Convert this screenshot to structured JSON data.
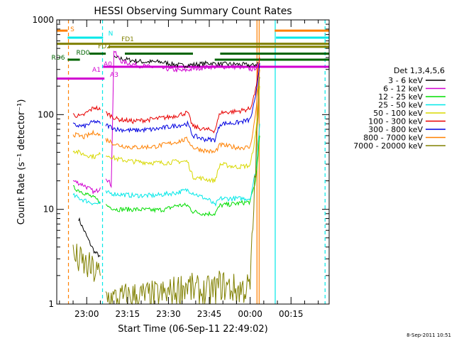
{
  "chart_data": {
    "type": "line",
    "title": "HESSI Observing Summary Count Rates",
    "xlabel": "Start Time (06-Sep-11 22:49:02)",
    "ylabel": "Count Rate (s⁻¹ detector⁻¹)",
    "yscale": "log",
    "ylim": [
      1,
      1000
    ],
    "xlim_minutes": [
      0,
      100
    ],
    "x_ticks": [
      {
        "minute": 11,
        "label": "23:00"
      },
      {
        "minute": 26,
        "label": "23:15"
      },
      {
        "minute": 41,
        "label": "23:30"
      },
      {
        "minute": 56,
        "label": "23:45"
      },
      {
        "minute": 71,
        "label": "00:00"
      },
      {
        "minute": 86,
        "label": "00:15"
      }
    ],
    "y_ticks": [
      {
        "value": 1,
        "label": "1"
      },
      {
        "value": 10,
        "label": "10"
      },
      {
        "value": 100,
        "label": "100"
      },
      {
        "value": 1000,
        "label": "1000"
      }
    ],
    "legend": {
      "placement": "right",
      "header": "Det 1,3,4,5,6",
      "entries": [
        {
          "label": "3 - 6 keV",
          "color": "#000000"
        },
        {
          "label": "6 - 12 keV",
          "color": "#d000d0"
        },
        {
          "label": "12 - 25 keV",
          "color": "#00dd00"
        },
        {
          "label": "25 - 50 keV",
          "color": "#00e8e8"
        },
        {
          "label": "50 - 100 keV",
          "color": "#d8d800"
        },
        {
          "label": "100 - 300 keV",
          "color": "#e80000"
        },
        {
          "label": "300 - 800 keV",
          "color": "#0000e0"
        },
        {
          "label": "800 - 7000 keV",
          "color": "#ff8000"
        },
        {
          "label": "7000 - 20000 keV",
          "color": "#808000"
        }
      ]
    },
    "series": [
      {
        "name": "3 - 6 keV",
        "color": "#000000",
        "segments": [
          [
            [
              8,
              8
            ],
            [
              10,
              6
            ],
            [
              12,
              4.5
            ],
            [
              14,
              3.5
            ],
            [
              16,
              3.2
            ]
          ],
          [
            [
              21,
              400
            ],
            [
              26,
              380
            ],
            [
              32,
              360
            ],
            [
              38,
              360
            ],
            [
              43,
              340
            ],
            [
              46,
              330
            ],
            [
              52,
              340
            ],
            [
              56,
              350
            ],
            [
              60,
              340
            ],
            [
              66,
              340
            ],
            [
              72,
              330
            ],
            [
              74,
              350
            ]
          ]
        ]
      },
      {
        "name": "6 - 12 keV",
        "color": "#d000d0",
        "segments": [
          [
            [
              6,
              20
            ],
            [
              10,
              18
            ],
            [
              14,
              15
            ],
            [
              16,
              17
            ]
          ],
          [
            [
              18,
              22
            ],
            [
              20,
              18
            ],
            [
              21,
              480
            ],
            [
              22,
              420
            ],
            [
              24,
              360
            ],
            [
              30,
              330
            ],
            [
              38,
              310
            ],
            [
              46,
              290
            ],
            [
              52,
              310
            ],
            [
              56,
              320
            ],
            [
              66,
              320
            ],
            [
              72,
              300
            ],
            [
              74,
              330
            ]
          ]
        ]
      },
      {
        "name": "12 - 25 keV",
        "color": "#00dd00",
        "segments": [
          [
            [
              6,
              17
            ],
            [
              10,
              15
            ],
            [
              14,
              13
            ],
            [
              16,
              12
            ]
          ],
          [
            [
              18,
              11
            ],
            [
              22,
              10
            ],
            [
              28,
              10
            ],
            [
              36,
              9.8
            ],
            [
              40,
              10
            ],
            [
              44,
              11
            ],
            [
              48,
              11
            ],
            [
              50,
              9.5
            ],
            [
              54,
              9
            ],
            [
              58,
              9
            ],
            [
              60,
              11
            ],
            [
              66,
              11.5
            ],
            [
              71,
              12
            ],
            [
              73,
              20
            ],
            [
              74.5,
              60
            ]
          ]
        ]
      },
      {
        "name": "25 - 50 keV",
        "color": "#00e8e8",
        "segments": [
          [
            [
              6,
              14
            ],
            [
              10,
              12.5
            ],
            [
              14,
              11.5
            ],
            [
              16,
              11.5
            ]
          ],
          [
            [
              18,
              15
            ],
            [
              22,
              14.5
            ],
            [
              28,
              14
            ],
            [
              36,
              14
            ],
            [
              40,
              14.5
            ],
            [
              44,
              15
            ],
            [
              48,
              16
            ],
            [
              52,
              14
            ],
            [
              56,
              12.5
            ],
            [
              58,
              11
            ],
            [
              60,
              13
            ],
            [
              66,
              13
            ],
            [
              71,
              13
            ],
            [
              73,
              25
            ],
            [
              74.5,
              80
            ]
          ]
        ]
      },
      {
        "name": "50 - 100 keV",
        "color": "#d8d800",
        "segments": [
          [
            [
              6,
              42
            ],
            [
              10,
              38
            ],
            [
              14,
              36
            ],
            [
              16,
              38
            ]
          ],
          [
            [
              18,
              38
            ],
            [
              22,
              34
            ],
            [
              28,
              32
            ],
            [
              36,
              31
            ],
            [
              40,
              31
            ],
            [
              44,
              32
            ],
            [
              48,
              32
            ],
            [
              50,
              22
            ],
            [
              54,
              21
            ],
            [
              58,
              20
            ],
            [
              60,
              30
            ],
            [
              66,
              28
            ],
            [
              71,
              29
            ],
            [
              73,
              60
            ],
            [
              74.5,
              200
            ]
          ]
        ]
      },
      {
        "name": "100 - 300 keV",
        "color": "#e80000",
        "segments": [
          [
            [
              6,
              100
            ],
            [
              9,
              95
            ],
            [
              12,
              110
            ],
            [
              14,
              120
            ],
            [
              16,
              112
            ]
          ],
          [
            [
              18,
              105
            ],
            [
              22,
              90
            ],
            [
              28,
              85
            ],
            [
              36,
              90
            ],
            [
              42,
              95
            ],
            [
              48,
              105
            ],
            [
              50,
              75
            ],
            [
              54,
              70
            ],
            [
              58,
              68
            ],
            [
              60,
              105
            ],
            [
              66,
              108
            ],
            [
              71,
              115
            ],
            [
              73,
              180
            ],
            [
              74.5,
              400
            ]
          ]
        ]
      },
      {
        "name": "300 - 800 keV",
        "color": "#0000e0",
        "segments": [
          [
            [
              6,
              78
            ],
            [
              10,
              75
            ],
            [
              14,
              85
            ],
            [
              16,
              80
            ]
          ],
          [
            [
              18,
              78
            ],
            [
              22,
              70
            ],
            [
              28,
              68
            ],
            [
              36,
              70
            ],
            [
              42,
              75
            ],
            [
              48,
              80
            ],
            [
              50,
              60
            ],
            [
              54,
              55
            ],
            [
              58,
              54
            ],
            [
              60,
              80
            ],
            [
              66,
              82
            ],
            [
              71,
              88
            ],
            [
              73,
              150
            ],
            [
              74.5,
              350
            ]
          ]
        ]
      },
      {
        "name": "800 - 7000 keV",
        "color": "#ff8000",
        "segments": [
          [
            [
              6,
              62
            ],
            [
              10,
              58
            ],
            [
              14,
              65
            ],
            [
              16,
              60
            ]
          ],
          [
            [
              18,
              55
            ],
            [
              22,
              48
            ],
            [
              28,
              45
            ],
            [
              36,
              46
            ],
            [
              42,
              50
            ],
            [
              48,
              55
            ],
            [
              50,
              45
            ],
            [
              54,
              42
            ],
            [
              58,
              40
            ],
            [
              60,
              48
            ],
            [
              66,
              45
            ],
            [
              71,
              45
            ],
            [
              73,
              100
            ],
            [
              74.5,
              300
            ]
          ]
        ]
      },
      {
        "name": "7000 - 20000 keV",
        "color": "#808000",
        "segments": [
          [
            [
              6,
              3.2
            ],
            [
              10,
              2.6
            ],
            [
              14,
              2.2
            ],
            [
              16,
              2.0
            ]
          ],
          [
            [
              18,
              1.2
            ],
            [
              22,
              1.1
            ],
            [
              28,
              1.2
            ],
            [
              36,
              1.2
            ],
            [
              42,
              1.3
            ],
            [
              48,
              1.6
            ],
            [
              50,
              1.4
            ],
            [
              54,
              1.3
            ],
            [
              58,
              1.4
            ],
            [
              60,
              1.6
            ],
            [
              66,
              1.4
            ],
            [
              71,
              1.5
            ],
            [
              73,
              30
            ],
            [
              74.5,
              250
            ]
          ]
        ]
      }
    ],
    "flag_lines": [
      {
        "label": "S",
        "color": "#ff8000",
        "y": 770,
        "segments": [
          [
            0,
            4
          ],
          [
            80,
            100
          ]
        ]
      },
      {
        "label": "N",
        "color": "#00e8e8",
        "y": 650,
        "segments": [
          [
            4,
            17
          ],
          [
            80.5,
            100
          ]
        ]
      },
      {
        "label": "FD1",
        "color": "#808000",
        "y": 520,
        "segments": [
          [
            19,
            100
          ]
        ]
      },
      {
        "label": "FD2",
        "color": "#808000",
        "y": 560,
        "segments": [
          [
            0,
            100
          ]
        ]
      },
      {
        "label": "RD6",
        "color": "#006400",
        "y": 380,
        "segments": [
          [
            4,
            8.5
          ],
          [
            58,
            100
          ]
        ]
      },
      {
        "label": "RD0",
        "color": "#006400",
        "y": 440,
        "segments": [
          [
            12,
            18
          ],
          [
            25,
            50
          ],
          [
            60,
            100
          ]
        ]
      },
      {
        "label": "A0",
        "color": "#d000d0",
        "y": 320,
        "segments": [
          [
            17,
            100
          ]
        ]
      },
      {
        "label": "A1",
        "color": "#d000d0",
        "y": 240,
        "segments": [
          [
            0,
            17.5
          ]
        ]
      },
      {
        "label": "A3",
        "color": "#d000d0",
        "y": 0,
        "segments": []
      }
    ],
    "vertical_markers": [
      {
        "minute": 4.3,
        "color": "#ff8000",
        "dashed": true
      },
      {
        "minute": 16.8,
        "color": "#00e8e8",
        "dashed": true
      },
      {
        "minute": 73.5,
        "color": "#ff8000",
        "dashed": false
      },
      {
        "minute": 74.3,
        "color": "#ff8000",
        "dashed": false
      },
      {
        "minute": 80.2,
        "color": "#00e8e8",
        "dashed": false
      },
      {
        "minute": 98.5,
        "color": "#00e8e8",
        "dashed": true
      }
    ],
    "timestamp": "8-Sep-2011 10:51"
  }
}
